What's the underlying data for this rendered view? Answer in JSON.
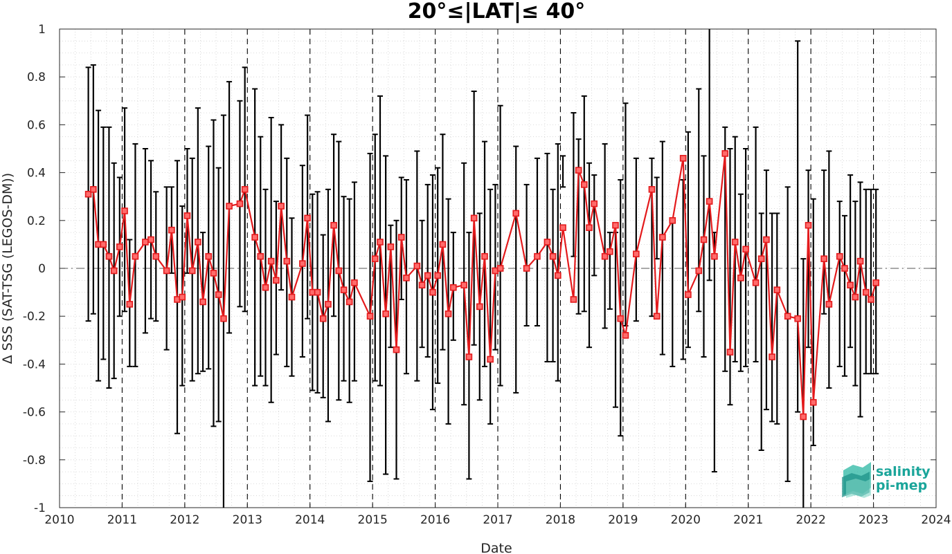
{
  "chart_data": {
    "type": "line",
    "title": "20°≤|LAT|≤ 40°",
    "xlabel": "Date",
    "ylabel": "Δ SSS (SAT-TSG (LEGOS-DM))",
    "xlim": [
      2010,
      2024
    ],
    "ylim": [
      -1,
      1
    ],
    "x_ticks": [
      2010,
      2011,
      2012,
      2013,
      2014,
      2015,
      2016,
      2017,
      2018,
      2019,
      2020,
      2021,
      2022,
      2023,
      2024
    ],
    "x_tick_labels": [
      "2010",
      "2011",
      "2012",
      "2013",
      "2014",
      "2015",
      "2016",
      "2017",
      "2018",
      "2019",
      "2020",
      "2021",
      "2022",
      "2023",
      "2024"
    ],
    "y_ticks": [
      -1,
      -0.8,
      -0.6,
      -0.4,
      -0.2,
      0,
      0.2,
      0.4,
      0.6,
      0.8,
      1
    ],
    "y_tick_labels": [
      "-1",
      "-0.8",
      "-0.6",
      "-0.4",
      "-0.2",
      "0",
      "0.2",
      "0.4",
      "0.6",
      "0.8",
      "1"
    ],
    "grid": "dotted minor grid, dashed vertical lines at year boundaries",
    "zero_line": "dash-dot",
    "colors": {
      "series": "#e31a1c",
      "errorbars": "#000000",
      "axis": "#262626"
    },
    "series": [
      {
        "marker": "square",
        "x": [
          2010.46,
          2010.54,
          2010.62,
          2010.7,
          2010.79,
          2010.87,
          2010.96,
          2011.04,
          2011.12,
          2011.21,
          2011.37,
          2011.46,
          2011.54,
          2011.71,
          2011.79,
          2011.88,
          2011.96,
          2012.04,
          2012.12,
          2012.21,
          2012.29,
          2012.38,
          2012.46,
          2012.54,
          2012.62,
          2012.71,
          2012.88,
          2012.96,
          2013.12,
          2013.21,
          2013.29,
          2013.38,
          2013.46,
          2013.54,
          2013.63,
          2013.71,
          2013.88,
          2013.96,
          2014.04,
          2014.12,
          2014.21,
          2014.29,
          2014.38,
          2014.46,
          2014.54,
          2014.63,
          2014.71,
          2014.96,
          2015.04,
          2015.12,
          2015.21,
          2015.29,
          2015.38,
          2015.46,
          2015.54,
          2015.71,
          2015.79,
          2015.88,
          2015.96,
          2016.04,
          2016.12,
          2016.21,
          2016.29,
          2016.46,
          2016.54,
          2016.62,
          2016.71,
          2016.79,
          2016.88,
          2016.96,
          2017.04,
          2017.29,
          2017.46,
          2017.63,
          2017.79,
          2017.88,
          2017.96,
          2018.04,
          2018.21,
          2018.29,
          2018.38,
          2018.46,
          2018.54,
          2018.71,
          2018.79,
          2018.88,
          2018.96,
          2019.04,
          2019.21,
          2019.46,
          2019.54,
          2019.63,
          2019.79,
          2019.96,
          2020.04,
          2020.21,
          2020.29,
          2020.38,
          2020.46,
          2020.63,
          2020.71,
          2020.79,
          2020.88,
          2020.96,
          2021.12,
          2021.21,
          2021.29,
          2021.38,
          2021.46,
          2021.63,
          2021.79,
          2021.88,
          2021.96,
          2022.04,
          2022.21,
          2022.29,
          2022.46,
          2022.54,
          2022.63,
          2022.71,
          2022.79,
          2022.88,
          2022.96,
          2023.04
        ],
        "y": [
          0.31,
          0.33,
          0.1,
          0.1,
          0.05,
          -0.01,
          0.09,
          0.24,
          -0.15,
          0.05,
          0.11,
          0.12,
          0.05,
          -0.01,
          0.16,
          -0.13,
          -0.12,
          0.22,
          -0.01,
          0.11,
          -0.14,
          0.05,
          -0.02,
          -0.11,
          -0.21,
          0.26,
          0.27,
          0.33,
          0.13,
          0.05,
          -0.08,
          0.03,
          -0.05,
          0.26,
          0.03,
          -0.12,
          0.02,
          0.21,
          -0.1,
          -0.1,
          -0.21,
          -0.15,
          0.18,
          -0.01,
          -0.09,
          -0.14,
          -0.06,
          -0.2,
          0.04,
          0.11,
          -0.19,
          0.09,
          -0.34,
          0.13,
          -0.04,
          0.01,
          -0.07,
          -0.03,
          -0.1,
          -0.03,
          0.1,
          -0.19,
          -0.08,
          -0.07,
          -0.37,
          0.21,
          -0.16,
          0.05,
          -0.38,
          -0.01,
          0.0,
          0.23,
          0.0,
          0.05,
          0.11,
          0.05,
          -0.03,
          0.17,
          -0.13,
          0.41,
          0.35,
          0.17,
          0.27,
          0.05,
          0.07,
          0.18,
          -0.21,
          -0.28,
          0.06,
          0.33,
          -0.2,
          0.13,
          0.2,
          0.46,
          -0.11,
          -0.01,
          0.12,
          0.28,
          0.05,
          0.48,
          -0.35,
          0.11,
          -0.04,
          0.08,
          -0.06,
          0.04,
          0.12,
          -0.37,
          -0.09,
          -0.2,
          -0.21,
          -0.62,
          0.18,
          -0.56,
          0.04,
          -0.15,
          0.05,
          0.0,
          -0.07,
          -0.12,
          0.03,
          -0.1,
          -0.13,
          -0.06
        ],
        "err_low": [
          -0.22,
          -0.19,
          -0.47,
          -0.38,
          -0.5,
          -0.46,
          -0.2,
          -0.18,
          -0.41,
          -0.41,
          -0.27,
          -0.21,
          -0.22,
          -0.34,
          -0.02,
          -0.69,
          -0.49,
          -0.02,
          -0.47,
          -0.44,
          -0.43,
          -0.42,
          -0.66,
          -0.64,
          -1.0,
          -0.27,
          -0.16,
          -0.18,
          -0.49,
          -0.45,
          -0.49,
          -0.56,
          -0.36,
          -0.09,
          -0.41,
          -0.45,
          -0.37,
          -0.21,
          -0.51,
          -0.52,
          -0.54,
          -0.64,
          -0.2,
          -0.55,
          -0.47,
          -0.56,
          -0.47,
          -0.89,
          -0.47,
          -0.49,
          -0.86,
          -0.33,
          -0.88,
          -0.13,
          -0.44,
          -0.47,
          -0.33,
          -0.37,
          -0.59,
          -0.48,
          -0.34,
          -0.65,
          -0.3,
          -0.57,
          -0.88,
          -0.32,
          -0.55,
          -0.41,
          -0.65,
          -0.34,
          -0.49,
          -0.52,
          -0.24,
          -0.24,
          -0.39,
          -0.39,
          -0.47,
          0.34,
          0.05,
          -0.19,
          -0.18,
          -0.33,
          -0.03,
          -0.25,
          -0.17,
          -0.58,
          -0.7,
          -0.24,
          -0.22,
          -0.2,
          0.04,
          -0.36,
          -0.41,
          -0.38,
          -0.33,
          -0.18,
          -0.37,
          -0.05,
          -0.85,
          -0.43,
          -0.57,
          -0.39,
          -0.43,
          -0.41,
          -0.39,
          -0.76,
          -0.59,
          -0.64,
          -0.65,
          -0.89,
          -0.6,
          -1.0,
          -0.33,
          -0.74,
          -0.19,
          -0.5,
          -0.41,
          -0.45,
          -0.33,
          -0.49,
          -0.62,
          -0.44,
          -0.44,
          -0.44
        ],
        "err_high": [
          0.84,
          0.85,
          0.66,
          0.59,
          0.59,
          0.44,
          0.38,
          0.67,
          0.12,
          0.52,
          0.5,
          0.45,
          0.32,
          0.34,
          0.34,
          0.45,
          0.26,
          0.5,
          0.46,
          0.67,
          0.15,
          0.51,
          0.62,
          0.42,
          0.64,
          0.78,
          0.7,
          0.84,
          0.75,
          0.55,
          0.33,
          0.63,
          0.28,
          0.6,
          0.46,
          0.21,
          0.43,
          0.64,
          0.31,
          0.32,
          0.14,
          0.33,
          0.56,
          0.53,
          0.3,
          0.29,
          0.36,
          0.48,
          0.56,
          0.72,
          0.47,
          0.18,
          0.2,
          0.38,
          0.37,
          0.49,
          0.2,
          0.35,
          0.39,
          0.42,
          0.56,
          0.29,
          0.15,
          0.44,
          0.15,
          0.74,
          0.23,
          0.53,
          0.33,
          0.35,
          0.68,
          0.51,
          0.35,
          0.46,
          0.48,
          0.33,
          0.52,
          0.47,
          0.65,
          0.54,
          0.72,
          0.44,
          0.39,
          0.52,
          0.15,
          0.15,
          0.37,
          0.69,
          0.46,
          0.46,
          0.38,
          0.53,
          0.19,
          0.37,
          0.57,
          0.75,
          0.47,
          1.0,
          0.15,
          0.59,
          0.5,
          0.55,
          0.31,
          0.5,
          0.59,
          0.23,
          0.41,
          0.23,
          0.23,
          0.34,
          0.95,
          0.04,
          0.41,
          0.29,
          0.41,
          0.49,
          0.28,
          0.22,
          0.39,
          0.28,
          0.36,
          0.33,
          0.33,
          0.33
        ]
      }
    ]
  },
  "logo": {
    "line1": "salinity",
    "line2": "pi-mep",
    "color": "#1aa59a"
  }
}
